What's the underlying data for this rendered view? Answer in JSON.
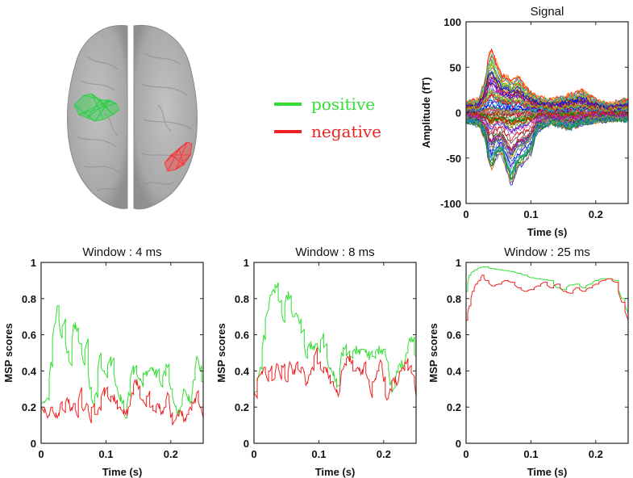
{
  "figure": {
    "brain_panel": {
      "description": "top view of cortical surface",
      "regions": [
        {
          "name": "positive cluster",
          "color": "#22c84a"
        },
        {
          "name": "negative cluster",
          "color": "#f01e1e"
        }
      ]
    },
    "legend": {
      "items": [
        {
          "label": "positive",
          "color": "#33dd33"
        },
        {
          "label": "negative",
          "color": "#ee2222"
        }
      ]
    }
  },
  "chart_data": [
    {
      "id": "signal",
      "type": "line",
      "title": "Signal",
      "xlabel": "Time (s)",
      "ylabel": "Amplitude (fT)",
      "xlim": [
        0,
        0.25
      ],
      "ylim": [
        -100,
        100
      ],
      "xticks": [
        0,
        0.1,
        0.2
      ],
      "xtick_labels": [
        "0",
        "0.1",
        "0.2"
      ],
      "yticks": [
        -100,
        -50,
        0,
        50,
        100
      ],
      "ytick_labels": [
        "-100",
        "-50",
        "0",
        "50",
        "100"
      ],
      "grid": false,
      "note": "butterfly plot of many channels; envelope approximated",
      "envelope": {
        "t": [
          0,
          0.02,
          0.03,
          0.035,
          0.04,
          0.045,
          0.055,
          0.065,
          0.07,
          0.08,
          0.09,
          0.1,
          0.11,
          0.13,
          0.16,
          0.18,
          0.2,
          0.22,
          0.25
        ],
        "upper": [
          12,
          15,
          40,
          65,
          72,
          60,
          42,
          40,
          35,
          42,
          30,
          22,
          18,
          14,
          20,
          25,
          14,
          10,
          15
        ],
        "lower": [
          -10,
          -14,
          -30,
          -55,
          -62,
          -50,
          -45,
          -70,
          -80,
          -60,
          -55,
          -45,
          -20,
          -12,
          -18,
          -12,
          -10,
          -8,
          -8
        ]
      }
    },
    {
      "id": "window-4ms",
      "type": "line",
      "title": "Window : 4 ms",
      "xlabel": "Time (s)",
      "ylabel": "MSP scores",
      "xlim": [
        0,
        0.25
      ],
      "ylim": [
        0,
        1
      ],
      "xticks": [
        0,
        0.1,
        0.2
      ],
      "xtick_labels": [
        "0",
        "0.1",
        "0.2"
      ],
      "yticks": [
        0,
        0.2,
        0.4,
        0.6,
        0.8,
        1
      ],
      "ytick_labels": [
        "0",
        "0.2",
        "0.4",
        "0.6",
        "0.8",
        "1"
      ],
      "grid": false,
      "x": [
        0,
        0.01,
        0.015,
        0.02,
        0.025,
        0.03,
        0.035,
        0.04,
        0.045,
        0.05,
        0.055,
        0.06,
        0.065,
        0.07,
        0.075,
        0.08,
        0.085,
        0.09,
        0.095,
        0.1,
        0.105,
        0.11,
        0.115,
        0.12,
        0.125,
        0.13,
        0.135,
        0.14,
        0.145,
        0.15,
        0.155,
        0.16,
        0.165,
        0.17,
        0.175,
        0.18,
        0.185,
        0.19,
        0.195,
        0.2,
        0.205,
        0.21,
        0.215,
        0.22,
        0.225,
        0.23,
        0.235,
        0.24,
        0.245,
        0.25
      ],
      "series": [
        {
          "name": "positive",
          "color": "#33dd33",
          "values": [
            0.22,
            0.25,
            0.45,
            0.65,
            0.76,
            0.6,
            0.66,
            0.5,
            0.44,
            0.66,
            0.62,
            0.55,
            0.45,
            0.55,
            0.3,
            0.22,
            0.28,
            0.48,
            0.4,
            0.38,
            0.45,
            0.46,
            0.32,
            0.26,
            0.22,
            0.14,
            0.28,
            0.4,
            0.42,
            0.36,
            0.34,
            0.38,
            0.4,
            0.42,
            0.38,
            0.4,
            0.32,
            0.4,
            0.42,
            0.3,
            0.22,
            0.16,
            0.2,
            0.3,
            0.26,
            0.22,
            0.35,
            0.48,
            0.4,
            0.34
          ]
        },
        {
          "name": "negative",
          "color": "#ee2222",
          "values": [
            0.2,
            0.14,
            0.2,
            0.16,
            0.14,
            0.22,
            0.18,
            0.25,
            0.18,
            0.22,
            0.16,
            0.28,
            0.18,
            0.22,
            0.14,
            0.2,
            0.16,
            0.2,
            0.28,
            0.3,
            0.24,
            0.26,
            0.22,
            0.2,
            0.18,
            0.16,
            0.2,
            0.28,
            0.35,
            0.3,
            0.24,
            0.22,
            0.26,
            0.2,
            0.18,
            0.22,
            0.16,
            0.2,
            0.28,
            0.14,
            0.12,
            0.16,
            0.18,
            0.12,
            0.16,
            0.2,
            0.22,
            0.28,
            0.2,
            0.14
          ]
        }
      ]
    },
    {
      "id": "window-8ms",
      "type": "line",
      "title": "Window : 8 ms",
      "xlabel": "Time (s)",
      "ylabel": "MSP scores",
      "xlim": [
        0,
        0.25
      ],
      "ylim": [
        0,
        1
      ],
      "xticks": [
        0,
        0.1,
        0.2
      ],
      "xtick_labels": [
        "0",
        "0.1",
        "0.2"
      ],
      "yticks": [
        0,
        0.2,
        0.4,
        0.6,
        0.8,
        1
      ],
      "ytick_labels": [
        "0",
        "0.2",
        "0.4",
        "0.6",
        "0.8",
        "1"
      ],
      "grid": false,
      "x": [
        0,
        0.01,
        0.015,
        0.02,
        0.025,
        0.03,
        0.035,
        0.04,
        0.045,
        0.05,
        0.055,
        0.06,
        0.065,
        0.07,
        0.075,
        0.08,
        0.085,
        0.09,
        0.095,
        0.1,
        0.105,
        0.11,
        0.115,
        0.12,
        0.125,
        0.13,
        0.135,
        0.14,
        0.145,
        0.15,
        0.155,
        0.16,
        0.165,
        0.17,
        0.175,
        0.18,
        0.185,
        0.19,
        0.195,
        0.2,
        0.205,
        0.21,
        0.215,
        0.22,
        0.225,
        0.23,
        0.235,
        0.24,
        0.245,
        0.25
      ],
      "series": [
        {
          "name": "positive",
          "color": "#33dd33",
          "values": [
            0.28,
            0.42,
            0.6,
            0.72,
            0.82,
            0.85,
            0.86,
            0.78,
            0.68,
            0.82,
            0.8,
            0.7,
            0.72,
            0.66,
            0.62,
            0.48,
            0.55,
            0.52,
            0.55,
            0.52,
            0.58,
            0.54,
            0.42,
            0.4,
            0.34,
            0.32,
            0.5,
            0.52,
            0.5,
            0.48,
            0.52,
            0.5,
            0.52,
            0.52,
            0.48,
            0.5,
            0.48,
            0.52,
            0.5,
            0.52,
            0.46,
            0.32,
            0.3,
            0.4,
            0.44,
            0.42,
            0.5,
            0.58,
            0.56,
            0.48
          ]
        },
        {
          "name": "negative",
          "color": "#ee2222",
          "values": [
            0.28,
            0.38,
            0.42,
            0.36,
            0.4,
            0.35,
            0.44,
            0.38,
            0.42,
            0.34,
            0.45,
            0.38,
            0.44,
            0.4,
            0.42,
            0.32,
            0.38,
            0.42,
            0.5,
            0.44,
            0.4,
            0.42,
            0.36,
            0.34,
            0.3,
            0.26,
            0.4,
            0.44,
            0.48,
            0.44,
            0.4,
            0.42,
            0.38,
            0.44,
            0.36,
            0.28,
            0.34,
            0.4,
            0.46,
            0.34,
            0.24,
            0.3,
            0.36,
            0.32,
            0.4,
            0.42,
            0.44,
            0.42,
            0.38,
            0.26
          ]
        }
      ]
    },
    {
      "id": "window-25ms",
      "type": "line",
      "title": "Window : 25 ms",
      "xlabel": "Time (s)",
      "ylabel": "MSP scores",
      "xlim": [
        0,
        0.25
      ],
      "ylim": [
        0,
        1
      ],
      "xticks": [
        0,
        0.1,
        0.2
      ],
      "xtick_labels": [
        "0",
        "0.1",
        "0.2"
      ],
      "yticks": [
        0,
        0.2,
        0.4,
        0.6,
        0.8,
        1
      ],
      "ytick_labels": [
        "0",
        "0.2",
        "0.4",
        "0.6",
        "0.8",
        "1"
      ],
      "grid": false,
      "x": [
        0,
        0.005,
        0.01,
        0.015,
        0.02,
        0.025,
        0.03,
        0.04,
        0.05,
        0.06,
        0.07,
        0.08,
        0.09,
        0.1,
        0.11,
        0.12,
        0.13,
        0.14,
        0.15,
        0.16,
        0.17,
        0.18,
        0.19,
        0.2,
        0.21,
        0.22,
        0.23,
        0.24,
        0.25
      ],
      "series": [
        {
          "name": "positive",
          "color": "#33dd33",
          "values": [
            0.84,
            0.93,
            0.95,
            0.96,
            0.97,
            0.975,
            0.975,
            0.965,
            0.96,
            0.955,
            0.95,
            0.94,
            0.93,
            0.915,
            0.91,
            0.905,
            0.9,
            0.86,
            0.85,
            0.875,
            0.88,
            0.86,
            0.88,
            0.9,
            0.91,
            0.91,
            0.9,
            0.8,
            0.72
          ]
        },
        {
          "name": "negative",
          "color": "#ee2222",
          "values": [
            0.68,
            0.76,
            0.84,
            0.88,
            0.9,
            0.93,
            0.9,
            0.87,
            0.88,
            0.9,
            0.89,
            0.86,
            0.84,
            0.85,
            0.87,
            0.89,
            0.86,
            0.88,
            0.84,
            0.83,
            0.86,
            0.84,
            0.86,
            0.88,
            0.9,
            0.91,
            0.89,
            0.78,
            0.68
          ]
        }
      ]
    }
  ]
}
